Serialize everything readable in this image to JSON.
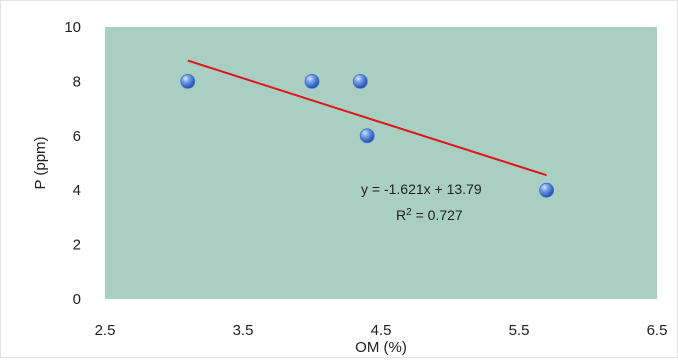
{
  "chart_data": {
    "type": "scatter",
    "title": "",
    "xlabel": "OM (%)",
    "ylabel": "P (ppm)",
    "xlim": [
      2.5,
      6.5
    ],
    "ylim": [
      0,
      10
    ],
    "x_ticks": [
      2.5,
      3.5,
      4.5,
      5.5,
      6.5
    ],
    "y_ticks": [
      0,
      2,
      4,
      6,
      8,
      10
    ],
    "x_tick_labels": [
      "2.5",
      "3.5",
      "4.5",
      "5.5",
      "6.5"
    ],
    "y_tick_labels": [
      "0",
      "2",
      "4",
      "6",
      "8",
      "10"
    ],
    "grid": false,
    "legend": "none",
    "plot_background": "#a9cfc2",
    "marker_color": "#3d6fcf",
    "trendline_color": "#e0141c",
    "series": [
      {
        "x": [
          3.1,
          4.0,
          4.35,
          4.4,
          5.7
        ],
        "y": [
          8,
          8,
          8,
          6,
          4
        ]
      }
    ],
    "trendline": {
      "type": "linear",
      "slope": -1.621,
      "intercept": 13.79,
      "x_range": [
        3.1,
        5.7
      ]
    },
    "annotations": {
      "equation": "y = -1.621x + 13.79",
      "r2_prefix": "R",
      "r2_exponent": "2",
      "r2_suffix": " = 0.727"
    }
  }
}
